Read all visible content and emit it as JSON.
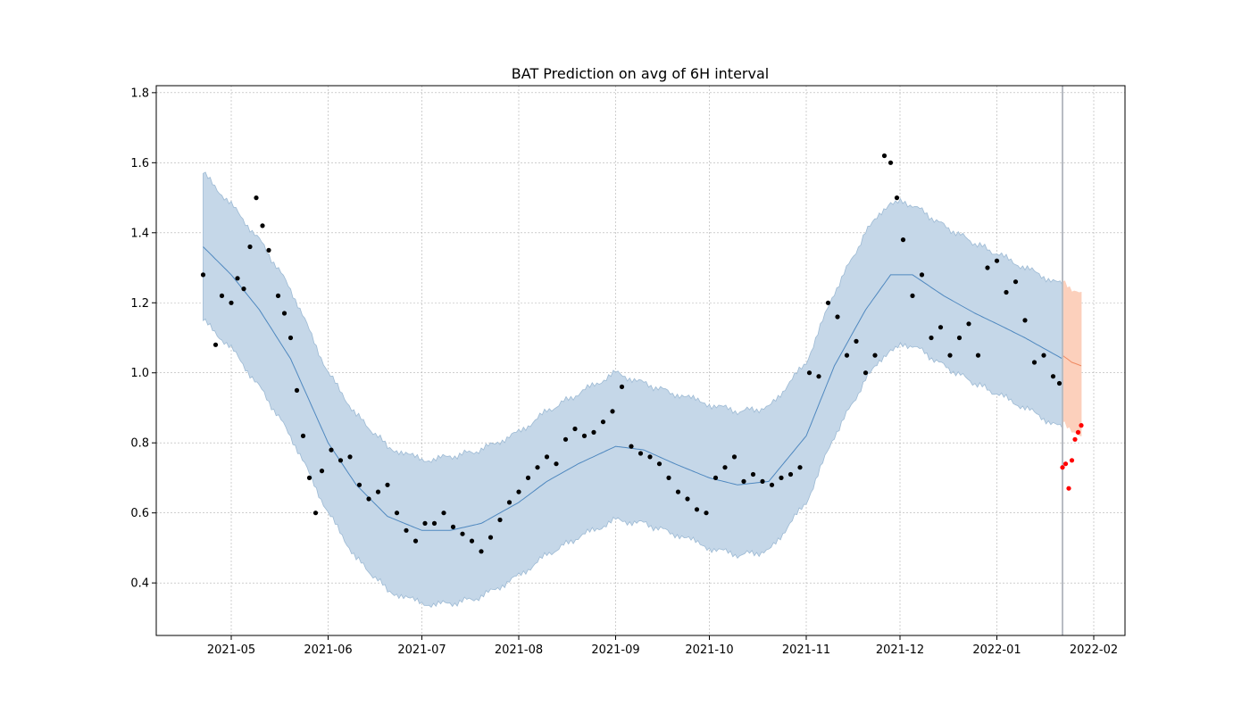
{
  "chart_data": {
    "type": "scatter",
    "title": "BAT Prediction on avg of 6H interval",
    "xlabel": "",
    "ylabel": "",
    "x_axis": "date",
    "xlim": [
      "2021-04-07",
      "2022-02-11"
    ],
    "ylim": [
      0.25,
      1.82
    ],
    "x_ticks": [
      "2021-05-01",
      "2021-06-01",
      "2021-07-01",
      "2021-08-01",
      "2021-09-01",
      "2021-10-01",
      "2021-11-01",
      "2021-12-01",
      "2022-01-01",
      "2022-02-01"
    ],
    "x_tick_labels": [
      "2021-05",
      "2021-06",
      "2021-07",
      "2021-08",
      "2021-09",
      "2021-10",
      "2021-11",
      "2021-12",
      "2022-01",
      "2022-02"
    ],
    "y_ticks": [
      0.4,
      0.6,
      0.8,
      1.0,
      1.2,
      1.4,
      1.6,
      1.8
    ],
    "y_tick_labels": [
      "0.4",
      "0.6",
      "0.8",
      "1.0",
      "1.2",
      "1.4",
      "1.6",
      "1.8"
    ],
    "grid": true,
    "forecast_start": "2022-01-22",
    "colors": {
      "band": "#c5d7e8",
      "band_edge": "#9dbad4",
      "fit_line": "#4f88bf",
      "observed": "#000000",
      "forecast_band": "#fcd0bc",
      "forecast_line": "#ef8a62",
      "actual_future": "#ff0000",
      "divider": "#b8bcc3",
      "grid": "#b0b0b0"
    },
    "series": [
      {
        "role": "fit",
        "x": [
          "2021-04-22",
          "2021-05-01",
          "2021-05-10",
          "2021-05-20",
          "2021-06-01",
          "2021-06-10",
          "2021-06-20",
          "2021-07-01",
          "2021-07-10",
          "2021-07-20",
          "2021-08-01",
          "2021-08-10",
          "2021-08-20",
          "2021-09-01",
          "2021-09-10",
          "2021-09-20",
          "2021-10-01",
          "2021-10-10",
          "2021-10-20",
          "2021-11-01",
          "2021-11-10",
          "2021-11-20",
          "2021-11-28",
          "2021-12-05",
          "2021-12-15",
          "2021-12-25",
          "2022-01-01",
          "2022-01-10",
          "2022-01-22"
        ],
        "y": [
          1.36,
          1.28,
          1.18,
          1.04,
          0.8,
          0.68,
          0.59,
          0.55,
          0.55,
          0.57,
          0.63,
          0.69,
          0.74,
          0.79,
          0.78,
          0.74,
          0.7,
          0.68,
          0.69,
          0.82,
          1.02,
          1.18,
          1.28,
          1.28,
          1.22,
          1.17,
          1.14,
          1.1,
          1.04
        ],
        "lower": [
          1.15,
          1.07,
          0.96,
          0.82,
          0.6,
          0.47,
          0.38,
          0.34,
          0.34,
          0.36,
          0.42,
          0.48,
          0.53,
          0.58,
          0.57,
          0.54,
          0.5,
          0.48,
          0.49,
          0.63,
          0.82,
          0.98,
          1.07,
          1.08,
          1.02,
          0.97,
          0.94,
          0.9,
          0.84
        ],
        "upper": [
          1.57,
          1.48,
          1.38,
          1.24,
          1.0,
          0.88,
          0.79,
          0.75,
          0.76,
          0.78,
          0.83,
          0.89,
          0.94,
          1.0,
          0.97,
          0.94,
          0.91,
          0.89,
          0.9,
          1.03,
          1.23,
          1.4,
          1.49,
          1.48,
          1.42,
          1.37,
          1.34,
          1.3,
          1.25
        ]
      },
      {
        "role": "forecast",
        "x": [
          "2022-01-22",
          "2022-01-25",
          "2022-01-28"
        ],
        "y": [
          1.05,
          1.03,
          1.02
        ],
        "lower": [
          0.86,
          0.84,
          0.82
        ],
        "upper": [
          1.26,
          1.24,
          1.23
        ]
      },
      {
        "role": "observed",
        "x": [
          "2021-04-22",
          "2021-04-26",
          "2021-04-28",
          "2021-05-01",
          "2021-05-03",
          "2021-05-05",
          "2021-05-07",
          "2021-05-09",
          "2021-05-11",
          "2021-05-13",
          "2021-05-16",
          "2021-05-18",
          "2021-05-20",
          "2021-05-22",
          "2021-05-24",
          "2021-05-26",
          "2021-05-28",
          "2021-05-30",
          "2021-06-02",
          "2021-06-05",
          "2021-06-08",
          "2021-06-11",
          "2021-06-14",
          "2021-06-17",
          "2021-06-20",
          "2021-06-23",
          "2021-06-26",
          "2021-06-29",
          "2021-07-02",
          "2021-07-05",
          "2021-07-08",
          "2021-07-11",
          "2021-07-14",
          "2021-07-17",
          "2021-07-20",
          "2021-07-23",
          "2021-07-26",
          "2021-07-29",
          "2021-08-01",
          "2021-08-04",
          "2021-08-07",
          "2021-08-10",
          "2021-08-13",
          "2021-08-16",
          "2021-08-19",
          "2021-08-22",
          "2021-08-25",
          "2021-08-28",
          "2021-08-31",
          "2021-09-03",
          "2021-09-06",
          "2021-09-09",
          "2021-09-12",
          "2021-09-15",
          "2021-09-18",
          "2021-09-21",
          "2021-09-24",
          "2021-09-27",
          "2021-09-30",
          "2021-10-03",
          "2021-10-06",
          "2021-10-09",
          "2021-10-12",
          "2021-10-15",
          "2021-10-18",
          "2021-10-21",
          "2021-10-24",
          "2021-10-27",
          "2021-10-30",
          "2021-11-02",
          "2021-11-05",
          "2021-11-08",
          "2021-11-11",
          "2021-11-14",
          "2021-11-17",
          "2021-11-20",
          "2021-11-23",
          "2021-11-26",
          "2021-11-28",
          "2021-11-30",
          "2021-12-02",
          "2021-12-05",
          "2021-12-08",
          "2021-12-11",
          "2021-12-14",
          "2021-12-17",
          "2021-12-20",
          "2021-12-23",
          "2021-12-26",
          "2021-12-29",
          "2022-01-01",
          "2022-01-04",
          "2022-01-07",
          "2022-01-10",
          "2022-01-13",
          "2022-01-16",
          "2022-01-19",
          "2022-01-21"
        ],
        "y": [
          1.28,
          1.08,
          1.22,
          1.2,
          1.27,
          1.24,
          1.36,
          1.5,
          1.42,
          1.35,
          1.22,
          1.17,
          1.1,
          0.95,
          0.82,
          0.7,
          0.6,
          0.72,
          0.78,
          0.75,
          0.76,
          0.68,
          0.64,
          0.66,
          0.68,
          0.6,
          0.55,
          0.52,
          0.57,
          0.57,
          0.6,
          0.56,
          0.54,
          0.52,
          0.49,
          0.53,
          0.58,
          0.63,
          0.66,
          0.7,
          0.73,
          0.76,
          0.74,
          0.81,
          0.84,
          0.82,
          0.83,
          0.86,
          0.89,
          0.96,
          0.79,
          0.77,
          0.76,
          0.74,
          0.7,
          0.66,
          0.64,
          0.61,
          0.6,
          0.7,
          0.73,
          0.76,
          0.69,
          0.71,
          0.69,
          0.68,
          0.7,
          0.71,
          0.73,
          1.0,
          0.99,
          1.2,
          1.16,
          1.05,
          1.09,
          1.0,
          1.05,
          1.62,
          1.6,
          1.5,
          1.38,
          1.22,
          1.28,
          1.1,
          1.13,
          1.05,
          1.1,
          1.14,
          1.05,
          1.3,
          1.32,
          1.23,
          1.26,
          1.15,
          1.03,
          1.05,
          0.99,
          0.97
        ]
      },
      {
        "role": "actual_future",
        "x": [
          "2022-01-22",
          "2022-01-23",
          "2022-01-24",
          "2022-01-25",
          "2022-01-26",
          "2022-01-27",
          "2022-01-28"
        ],
        "y": [
          0.73,
          0.74,
          0.67,
          0.75,
          0.81,
          0.83,
          0.85
        ]
      }
    ]
  }
}
